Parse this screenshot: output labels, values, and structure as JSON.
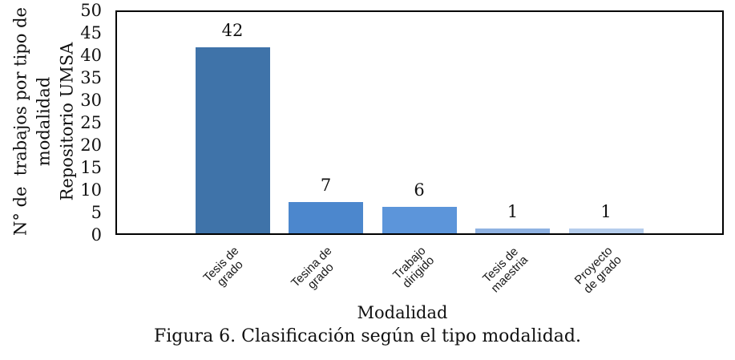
{
  "chart_data": {
    "type": "bar",
    "categories": [
      "Tesis de\ngrado",
      "Tesina de\ngrado",
      "Trabajo\ndirigido",
      "Tesis de\nmaestria",
      "Proyecto\nde grado"
    ],
    "values": [
      42,
      7,
      6,
      1,
      1
    ],
    "value_labels": [
      "42",
      "7",
      "6",
      "1",
      "1"
    ],
    "bar_colors": [
      "#3F73A9",
      "#4C87CD",
      "#5C95DA",
      "#8FB2E2",
      "#B5CDEC"
    ],
    "xlabel": "Modalidad",
    "ylabel_lines": [
      "N° de  trabajos por tipo de",
      "modalidad",
      "Repositorio UMSA"
    ],
    "ylim": [
      0,
      50
    ],
    "yticks": [
      0,
      5,
      10,
      15,
      20,
      25,
      30,
      35,
      40,
      45,
      50
    ],
    "grid": false,
    "legend": "none",
    "value_label_position": "above",
    "plot_border_color": "#000000",
    "background_color": "#ffffff"
  },
  "caption": "Figura 6. Clasificación según el tipo modalidad."
}
